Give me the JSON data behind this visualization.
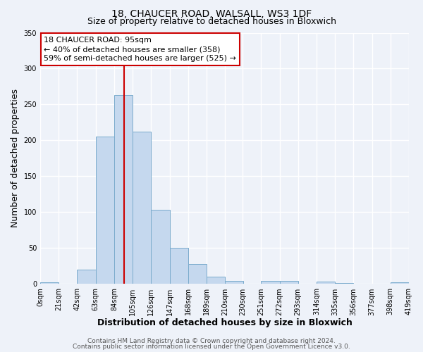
{
  "title": "18, CHAUCER ROAD, WALSALL, WS3 1DF",
  "subtitle": "Size of property relative to detached houses in Bloxwich",
  "xlabel": "Distribution of detached houses by size in Bloxwich",
  "ylabel": "Number of detached properties",
  "bin_edges": [
    0,
    21,
    42,
    63,
    84,
    105,
    126,
    147,
    168,
    189,
    210,
    230,
    251,
    272,
    293,
    314,
    335,
    356,
    377,
    398,
    419
  ],
  "bar_heights": [
    2,
    0,
    20,
    205,
    263,
    212,
    103,
    50,
    28,
    10,
    4,
    0,
    4,
    4,
    0,
    3,
    1,
    0,
    0,
    2
  ],
  "bar_color": "#c5d8ee",
  "bar_edge_color": "#7aabcc",
  "vline_x": 95,
  "vline_color": "#cc0000",
  "ylim": [
    0,
    350
  ],
  "yticks": [
    0,
    50,
    100,
    150,
    200,
    250,
    300,
    350
  ],
  "xtick_labels": [
    "0sqm",
    "21sqm",
    "42sqm",
    "63sqm",
    "84sqm",
    "105sqm",
    "126sqm",
    "147sqm",
    "168sqm",
    "189sqm",
    "210sqm",
    "230sqm",
    "251sqm",
    "272sqm",
    "293sqm",
    "314sqm",
    "335sqm",
    "356sqm",
    "377sqm",
    "398sqm",
    "419sqm"
  ],
  "annotation_title": "18 CHAUCER ROAD: 95sqm",
  "annotation_line1": "← 40% of detached houses are smaller (358)",
  "annotation_line2": "59% of semi-detached houses are larger (525) →",
  "annotation_box_color": "#ffffff",
  "annotation_box_edge_color": "#cc0000",
  "footer_line1": "Contains HM Land Registry data © Crown copyright and database right 2024.",
  "footer_line2": "Contains public sector information licensed under the Open Government Licence v3.0.",
  "background_color": "#eef2f9",
  "plot_background_color": "#eef2f9",
  "grid_color": "#ffffff",
  "title_fontsize": 10,
  "subtitle_fontsize": 9,
  "axis_label_fontsize": 9,
  "tick_fontsize": 7,
  "annotation_fontsize": 8,
  "footer_fontsize": 6.5
}
